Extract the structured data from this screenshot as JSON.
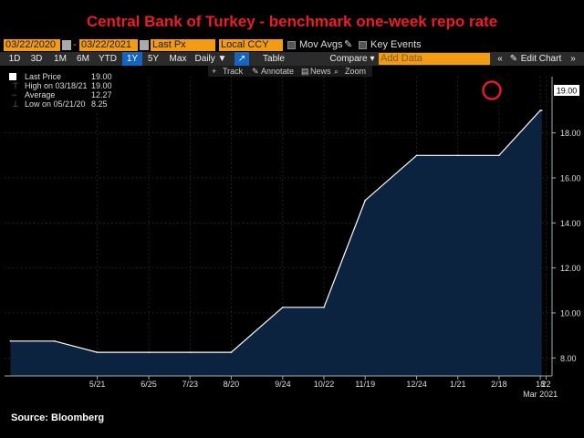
{
  "title": "Central Bank of Turkey  - benchmark one-week repo rate",
  "toolbar": {
    "start_date": "03/22/2020",
    "end_date": "03/22/2021",
    "field": "Last Px",
    "currency": "Local CCY",
    "mov_avgs": "Mov Avgs",
    "key_events": "Key Events",
    "ranges": [
      "1D",
      "3D",
      "1M",
      "6M",
      "YTD",
      "1Y",
      "5Y",
      "Max"
    ],
    "active_range": "1Y",
    "frequency": "Daily ▼",
    "table": "Table",
    "compare": "Compare",
    "add_data_placeholder": "Add Data",
    "edit_chart": "Edit Chart",
    "track": "Track",
    "annotate": "Annotate",
    "news": "News",
    "zoom": "Zoom"
  },
  "legend": {
    "last_price_label": "Last Price",
    "last_price_value": "19.00",
    "high_label": "High on 03/18/21",
    "high_value": "19.00",
    "average_label": "Average",
    "average_value": "12.27",
    "low_label": "Low on 05/21/20",
    "low_value": "8.25"
  },
  "source": "Source: Bloomberg",
  "colors": {
    "title": "#ee1c25",
    "area": "#0c2340",
    "line": "#ffffff",
    "highlight": "#e41b23",
    "toolbar_field": "#f39c12"
  },
  "chart_data": {
    "type": "area",
    "title": "Central Bank of Turkey  - benchmark one-week repo rate",
    "x_ticks": [
      "5/21",
      "6/25",
      "7/23",
      "8/20",
      "9/24",
      "10/22",
      "11/19",
      "12/24",
      "1/21",
      "2/18",
      "18",
      "22"
    ],
    "x_sub_label": "Mar 2021",
    "ylim": [
      7.2,
      20.5
    ],
    "y_ticks": [
      8.0,
      10.0,
      12.0,
      14.0,
      16.0,
      18.0
    ],
    "y_tick_labels": [
      "8.00",
      "10.00",
      "12.00",
      "14.00",
      "16.00",
      "18.00"
    ],
    "last_value_label": "19.00",
    "grid": true,
    "series": [
      {
        "x": [
          "2020-03-23",
          "2020-04-22",
          "2020-05-21",
          "2020-06-25",
          "2020-07-23",
          "2020-08-20",
          "2020-09-24",
          "2020-10-22",
          "2020-11-19",
          "2020-12-24",
          "2021-01-21",
          "2021-02-18",
          "2021-03-18",
          "2021-03-19"
        ],
        "y": [
          8.75,
          8.75,
          8.25,
          8.25,
          8.25,
          8.25,
          10.25,
          10.25,
          15.0,
          17.0,
          17.0,
          17.0,
          19.0,
          19.0
        ]
      }
    ]
  }
}
